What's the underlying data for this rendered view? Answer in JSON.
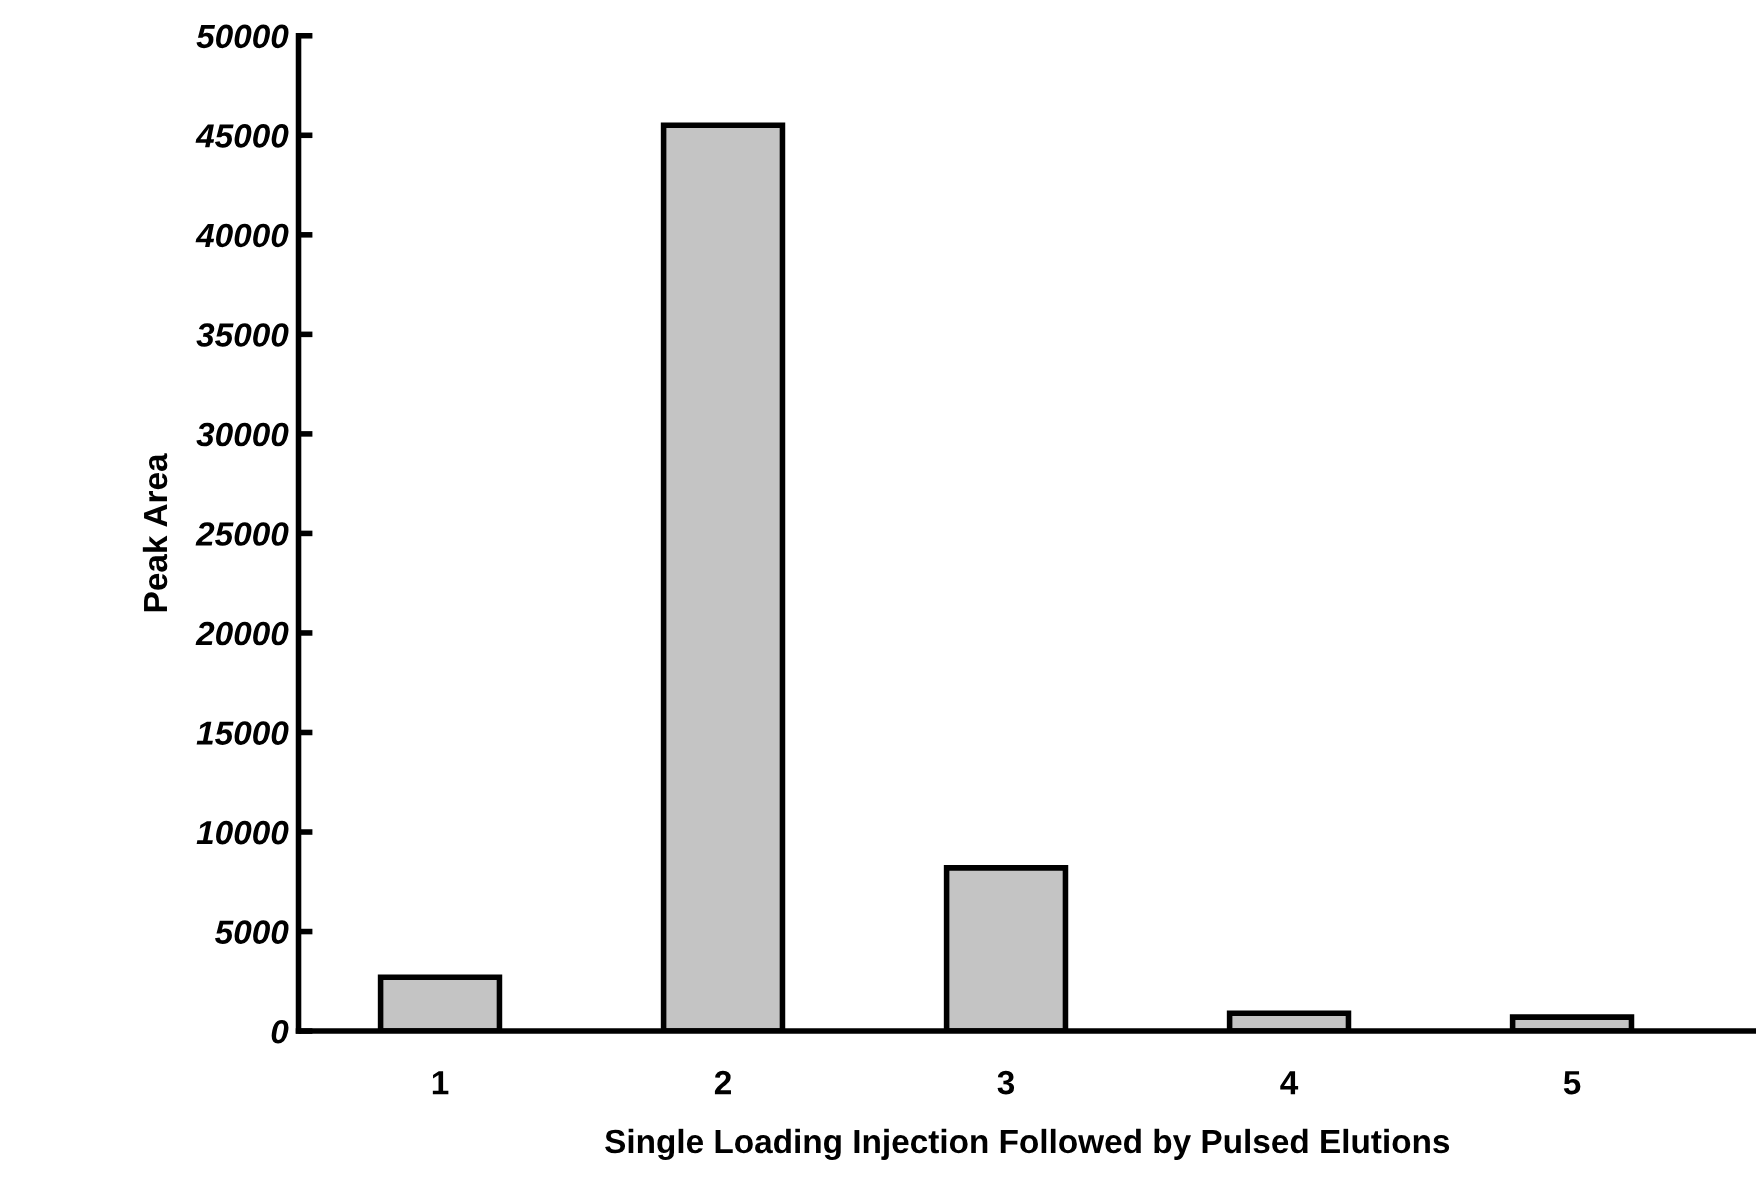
{
  "chart_data": {
    "type": "bar",
    "xlabel": "Single Loading Injection Followed by Pulsed Elutions",
    "ylabel": "Peak Area",
    "categories": [
      "1",
      "2",
      "3",
      "4",
      "5"
    ],
    "values": [
      2700,
      45500,
      8200,
      900,
      700
    ],
    "color": "#c4c4c4",
    "ylim": [
      0,
      50000
    ],
    "yticks": [
      0,
      5000,
      10000,
      15000,
      20000,
      25000,
      30000,
      35000,
      40000,
      45000,
      50000
    ],
    "grid": false,
    "legend": false
  }
}
